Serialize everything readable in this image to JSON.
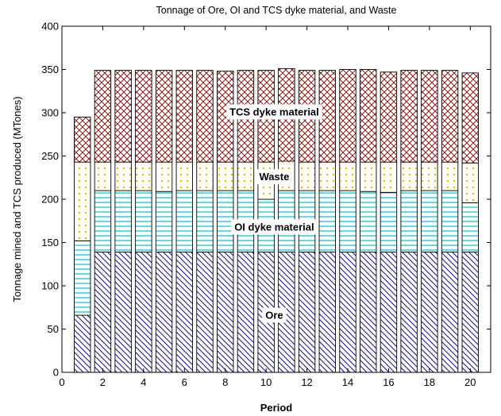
{
  "chart_data": {
    "type": "bar",
    "stacked": true,
    "title": "Tonnage of Ore, OI and TCS dyke material, and Waste",
    "xlabel": "Period",
    "ylabel": "Tonnage mined and TCS produced (MTones)",
    "xlim": [
      0,
      21
    ],
    "ylim": [
      0,
      400
    ],
    "xticks": [
      0,
      2,
      4,
      6,
      8,
      10,
      12,
      14,
      16,
      18,
      20
    ],
    "yticks": [
      0,
      50,
      100,
      150,
      200,
      250,
      300,
      350,
      400
    ],
    "grid": false,
    "x": [
      1,
      2,
      3,
      4,
      5,
      6,
      7,
      8,
      9,
      10,
      11,
      12,
      13,
      14,
      15,
      16,
      17,
      18,
      19,
      20
    ],
    "series": [
      {
        "name": "Ore",
        "color": "#1a1a8c",
        "pattern": "diagonal",
        "values": [
          66,
          139,
          139,
          139,
          139,
          139,
          139,
          139,
          139,
          139,
          139,
          139,
          139,
          139,
          139,
          139,
          139,
          139,
          139,
          139
        ]
      },
      {
        "name": "OI dyke material",
        "color": "#22c8d8",
        "pattern": "horizontal",
        "values": [
          86,
          71,
          71,
          71,
          70,
          71,
          71,
          71,
          71,
          61,
          71,
          71,
          71,
          71,
          70,
          69,
          71,
          71,
          71,
          57
        ]
      },
      {
        "name": "Waste",
        "color": "#f5b800",
        "pattern": "dots",
        "values": [
          91,
          33,
          33,
          33,
          34,
          33,
          33,
          33,
          33,
          43,
          34,
          33,
          33,
          33,
          34,
          35,
          33,
          33,
          33,
          46
        ]
      },
      {
        "name": "TCS dyke material",
        "color": "#8b1a1a",
        "pattern": "crosshatch",
        "values": [
          52,
          106,
          106,
          106,
          106,
          106,
          106,
          105,
          106,
          106,
          107,
          106,
          106,
          107,
          107,
          104,
          106,
          106,
          106,
          104
        ]
      }
    ],
    "annotations": [
      {
        "text": "TCS dyke material",
        "x": 10.4,
        "y": 301
      },
      {
        "text": "Waste",
        "x": 10.4,
        "y": 226
      },
      {
        "text": "OI dyke material",
        "x": 10.4,
        "y": 168
      },
      {
        "text": "Ore",
        "x": 10.4,
        "y": 66
      }
    ]
  }
}
